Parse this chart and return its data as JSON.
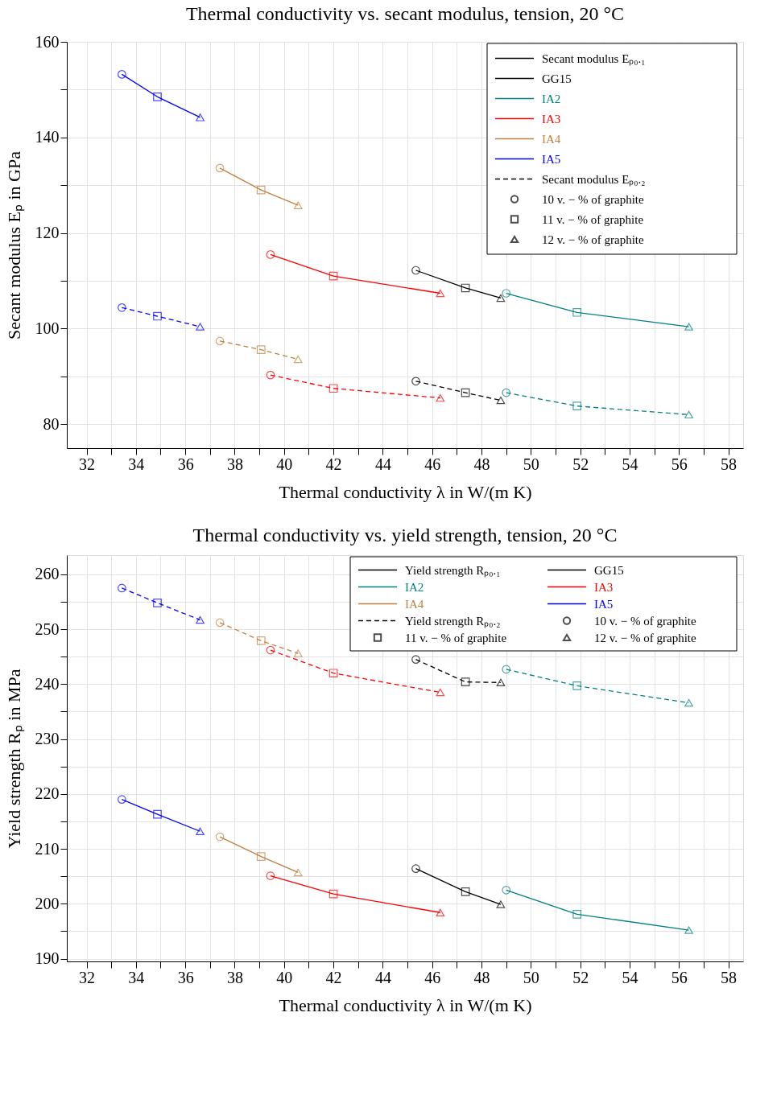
{
  "chart_data": [
    {
      "type": "line",
      "title": "Thermal conductivity vs. secant modulus, tension, 20 °C",
      "xlabel": "Thermal conductivity λ in W/(m K)",
      "ylabel": "Secant modulus Eₚ in GPa",
      "xlim": [
        31.2,
        58.6
      ],
      "ylim": [
        75,
        160
      ],
      "grid": true,
      "legend": "top right",
      "annotations": [
        "Secant modulus Eₚ₀.₁",
        "Secant modulus Eₚ₀.₂"
      ],
      "xticks": [
        32,
        {
          "value": 33,
          "label": null
        },
        34,
        {
          "value": 35,
          "label": null
        },
        36,
        {
          "value": 37,
          "label": null
        },
        38,
        {
          "value": 39,
          "label": null
        },
        40,
        {
          "value": 41,
          "label": null
        },
        42,
        {
          "value": 43,
          "label": null
        },
        44,
        {
          "value": 45,
          "label": null
        },
        46,
        {
          "value": 47,
          "label": null
        },
        48,
        {
          "value": 49,
          "label": null
        },
        50,
        {
          "value": 51,
          "label": null
        },
        52,
        {
          "value": 53,
          "label": null
        },
        54,
        {
          "value": 55,
          "label": null
        },
        56,
        {
          "value": 57,
          "label": null
        },
        58
      ],
      "yticks": [
        80,
        {
          "value": 90,
          "label": null
        },
        100,
        {
          "value": 110,
          "label": null
        },
        120,
        {
          "value": 130,
          "label": null
        },
        140,
        {
          "value": 150,
          "label": null
        },
        160
      ],
      "series": [
        {
          "name": "GG15",
          "color": "#000000",
          "line_style": "solid",
          "marker": "none",
          "x": [
            45.34,
            47.35,
            48.78
          ],
          "values": [
            112.2,
            108.5,
            106.4
          ]
        },
        {
          "name": "IA2",
          "color": "#008080",
          "line_style": "solid",
          "marker": "none",
          "x": [
            49.0,
            51.87,
            56.4
          ],
          "values": [
            107.4,
            103.4,
            100.4
          ]
        },
        {
          "name": "IA3",
          "color": "#ff0000",
          "line_style": "solid",
          "marker": "none",
          "x": [
            39.45,
            42.0,
            46.33
          ],
          "values": [
            115.5,
            111.0,
            107.4
          ]
        },
        {
          "name": "IA4",
          "color": "#bf8040",
          "line_style": "solid",
          "marker": "none",
          "x": [
            37.4,
            39.07,
            40.57
          ],
          "values": [
            133.6,
            129.0,
            125.8
          ]
        },
        {
          "name": "IA5",
          "color": "#0000ff",
          "line_style": "solid",
          "marker": "none",
          "x": [
            33.43,
            34.87,
            36.6
          ],
          "values": [
            153.2,
            148.5,
            144.2
          ]
        },
        {
          "color": "#000000",
          "line_style": "dashed",
          "marker": "none",
          "x": [
            45.34,
            47.35,
            48.78
          ],
          "values": [
            89.0,
            86.6,
            85.0
          ]
        },
        {
          "color": "#008080",
          "line_style": "dashed",
          "marker": "none",
          "x": [
            49.0,
            51.87,
            56.4
          ],
          "values": [
            86.6,
            83.8,
            82.0
          ]
        },
        {
          "color": "#ff0000",
          "line_style": "dashed",
          "marker": "none",
          "x": [
            39.45,
            42.0,
            46.33
          ],
          "values": [
            90.3,
            87.5,
            85.5
          ]
        },
        {
          "color": "#bf8040",
          "line_style": "dashed",
          "marker": "none",
          "x": [
            37.4,
            39.07,
            40.57
          ],
          "values": [
            97.4,
            95.6,
            93.6
          ]
        },
        {
          "color": "#0000ff",
          "line_style": "dashed",
          "marker": "none",
          "x": [
            33.43,
            34.87,
            36.6
          ],
          "values": [
            104.4,
            102.6,
            100.4
          ]
        },
        {
          "type": "scatter",
          "name": "10 v. − % of graphite",
          "marker": "circle",
          "color": "#000000",
          "x": [
            45.34,
            49.0,
            39.45,
            37.4,
            33.43,
            45.34,
            49.0,
            39.45,
            37.4,
            33.43
          ],
          "values": [
            112.2,
            107.4,
            115.5,
            133.6,
            153.2,
            89.0,
            86.6,
            90.3,
            97.4,
            104.4
          ],
          "colors": [
            "#000000",
            "#008080",
            "#ff0000",
            "#bf8040",
            "#0000ff",
            "#000000",
            "#008080",
            "#ff0000",
            "#bf8040",
            "#0000ff"
          ]
        },
        {
          "type": "scatter",
          "name": "11 v. − % of graphite",
          "marker": "square",
          "color": "#000000",
          "x": [
            47.35,
            51.87,
            42.0,
            39.07,
            34.87,
            47.35,
            51.87,
            42.0,
            39.07,
            34.87
          ],
          "values": [
            108.5,
            103.4,
            111.0,
            129.0,
            148.5,
            86.6,
            83.8,
            87.5,
            95.6,
            102.6
          ],
          "colors": [
            "#000000",
            "#008080",
            "#ff0000",
            "#bf8040",
            "#0000ff",
            "#000000",
            "#008080",
            "#ff0000",
            "#bf8040",
            "#0000ff"
          ]
        },
        {
          "type": "scatter",
          "name": "12 v. − % of graphite",
          "marker": "triangle",
          "color": "#000000",
          "x": [
            48.78,
            56.4,
            46.33,
            40.57,
            36.6,
            48.78,
            56.4,
            46.33,
            40.57,
            36.6
          ],
          "values": [
            106.4,
            100.4,
            107.4,
            125.8,
            144.2,
            85.0,
            82.0,
            85.5,
            93.6,
            100.4
          ],
          "colors": [
            "#000000",
            "#008080",
            "#ff0000",
            "#bf8040",
            "#0000ff",
            "#000000",
            "#008080",
            "#ff0000",
            "#bf8040",
            "#0000ff"
          ]
        }
      ]
    },
    {
      "type": "line",
      "title": "Thermal conductivity vs. yield strength, tension, 20 °C",
      "xlabel": "Thermal conductivity λ in W/(m K)",
      "ylabel": "Yield strength Rₚ in MPa",
      "xlim": [
        31.2,
        58.6
      ],
      "ylim": [
        189.5,
        263.5
      ],
      "grid": true,
      "legend": "top right",
      "annotations": [
        "Yield strength Rₚ₀.₁",
        "Yield strength Rₚ₀.₂"
      ],
      "xticks": [
        32,
        {
          "value": 33,
          "label": null
        },
        34,
        {
          "value": 35,
          "label": null
        },
        36,
        {
          "value": 37,
          "label": null
        },
        38,
        {
          "value": 39,
          "label": null
        },
        40,
        {
          "value": 41,
          "label": null
        },
        42,
        {
          "value": 43,
          "label": null
        },
        44,
        {
          "value": 45,
          "label": null
        },
        46,
        {
          "value": 47,
          "label": null
        },
        48,
        {
          "value": 49,
          "label": null
        },
        50,
        {
          "value": 51,
          "label": null
        },
        52,
        {
          "value": 53,
          "label": null
        },
        54,
        {
          "value": 55,
          "label": null
        },
        56,
        {
          "value": 57,
          "label": null
        },
        58
      ],
      "yticks": [
        190,
        {
          "value": 195,
          "label": null
        },
        200,
        {
          "value": 205,
          "label": null
        },
        210,
        {
          "value": 215,
          "label": null
        },
        220,
        {
          "value": 225,
          "label": null
        },
        230,
        {
          "value": 235,
          "label": null
        },
        240,
        {
          "value": 245,
          "label": null
        },
        250,
        {
          "value": 255,
          "label": null
        },
        260
      ],
      "series": [
        {
          "name": "GG15",
          "color": "#000000",
          "line_style": "solid",
          "marker": "none",
          "x": [
            45.34,
            47.35,
            48.78
          ],
          "values": [
            206.4,
            202.2,
            199.9
          ]
        },
        {
          "name": "IA2",
          "color": "#008080",
          "line_style": "solid",
          "marker": "none",
          "x": [
            49.0,
            51.87,
            56.4
          ],
          "values": [
            202.5,
            198.1,
            195.2
          ]
        },
        {
          "name": "IA3",
          "color": "#ff0000",
          "line_style": "solid",
          "marker": "none",
          "x": [
            39.45,
            42.0,
            46.33
          ],
          "values": [
            205.1,
            201.8,
            198.4
          ]
        },
        {
          "name": "IA4",
          "color": "#bf8040",
          "line_style": "solid",
          "marker": "none",
          "x": [
            37.4,
            39.07,
            40.57
          ],
          "values": [
            212.2,
            208.6,
            205.7
          ]
        },
        {
          "name": "IA5",
          "color": "#0000ff",
          "line_style": "solid",
          "marker": "none",
          "x": [
            33.43,
            34.87,
            36.6
          ],
          "values": [
            219.0,
            216.3,
            213.2
          ]
        },
        {
          "color": "#000000",
          "line_style": "dashed",
          "marker": "none",
          "x": [
            45.34,
            47.35,
            48.78
          ],
          "values": [
            244.5,
            240.4,
            240.3
          ]
        },
        {
          "color": "#008080",
          "line_style": "dashed",
          "marker": "none",
          "x": [
            49.0,
            51.87,
            56.4
          ],
          "values": [
            242.7,
            239.7,
            236.6
          ]
        },
        {
          "color": "#ff0000",
          "line_style": "dashed",
          "marker": "none",
          "x": [
            39.45,
            42.0,
            46.33
          ],
          "values": [
            246.2,
            242.0,
            238.5
          ]
        },
        {
          "color": "#bf8040",
          "line_style": "dashed",
          "marker": "none",
          "x": [
            37.4,
            39.07,
            40.57
          ],
          "values": [
            251.2,
            247.9,
            245.6
          ]
        },
        {
          "color": "#0000ff",
          "line_style": "dashed",
          "marker": "none",
          "x": [
            33.43,
            34.87,
            36.6
          ],
          "values": [
            257.5,
            254.8,
            251.7
          ]
        },
        {
          "type": "scatter",
          "name": "10 v. − % of graphite",
          "marker": "circle",
          "color": "#000000",
          "x": [
            45.34,
            49.0,
            39.45,
            37.4,
            33.43,
            45.34,
            49.0,
            39.45,
            37.4,
            33.43
          ],
          "values": [
            206.4,
            202.5,
            205.1,
            212.2,
            219.0,
            244.5,
            242.7,
            246.2,
            251.2,
            257.5
          ],
          "colors": [
            "#000000",
            "#008080",
            "#ff0000",
            "#bf8040",
            "#0000ff",
            "#000000",
            "#008080",
            "#ff0000",
            "#bf8040",
            "#0000ff"
          ]
        },
        {
          "type": "scatter",
          "name": "11 v. − % of graphite",
          "marker": "square",
          "color": "#000000",
          "x": [
            47.35,
            51.87,
            42.0,
            39.07,
            34.87,
            47.35,
            51.87,
            42.0,
            39.07,
            34.87
          ],
          "values": [
            202.2,
            198.1,
            201.8,
            208.6,
            216.3,
            240.4,
            239.7,
            242.0,
            247.9,
            254.8
          ],
          "colors": [
            "#000000",
            "#008080",
            "#ff0000",
            "#bf8040",
            "#0000ff",
            "#000000",
            "#008080",
            "#ff0000",
            "#bf8040",
            "#0000ff"
          ]
        },
        {
          "type": "scatter",
          "name": "12 v. − % of graphite",
          "marker": "triangle",
          "color": "#000000",
          "x": [
            48.78,
            56.4,
            46.33,
            40.57,
            36.6,
            48.78,
            56.4,
            46.33,
            40.57,
            36.6
          ],
          "values": [
            199.9,
            195.2,
            198.4,
            205.7,
            213.2,
            240.3,
            236.6,
            238.5,
            245.6,
            251.7
          ],
          "colors": [
            "#000000",
            "#008080",
            "#ff0000",
            "#bf8040",
            "#0000ff",
            "#000000",
            "#008080",
            "#ff0000",
            "#bf8040",
            "#0000ff"
          ]
        }
      ]
    }
  ]
}
